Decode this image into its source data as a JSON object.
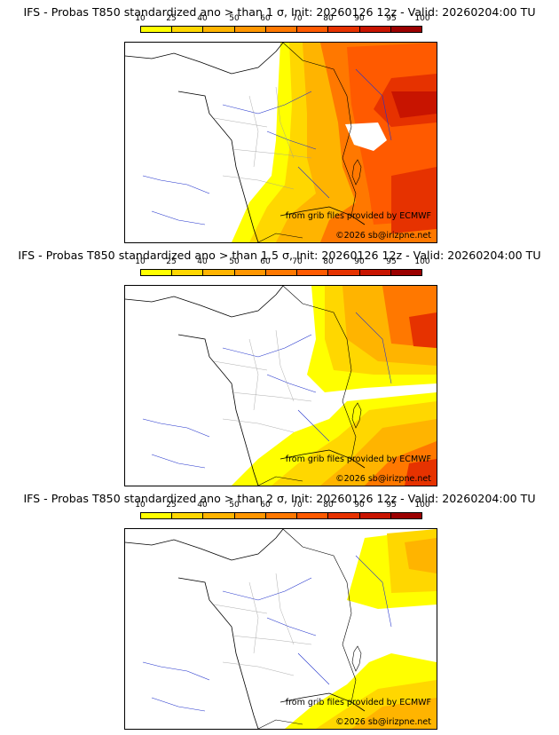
{
  "colorbar": {
    "ticks": [
      "10",
      "25",
      "40",
      "50",
      "60",
      "70",
      "80",
      "90",
      "95",
      "100"
    ],
    "colors": [
      "#ffff00",
      "#ffd700",
      "#ffb400",
      "#ff9600",
      "#ff7800",
      "#ff5a00",
      "#e63200",
      "#c81400",
      "#9b0000",
      "#640000"
    ]
  },
  "panels": [
    {
      "title": "IFS - Probas T850  standardized ano > than 1 σ, Init: 20260126 12z - Valid: 20260204:00 TU",
      "credit_source": "from grib files provided by ECMWF",
      "credit_copyright": "©2026 sb@irizpne.net",
      "probability_level": "high"
    },
    {
      "title": "IFS - Probas T850  standardized ano > than 1.5 σ, Init: 20260126 12z - Valid: 20260204:00 TU",
      "credit_source": "from grib files provided by ECMWF",
      "credit_copyright": "©2026 sb@irizpne.net",
      "probability_level": "medium"
    },
    {
      "title": "IFS - Probas T850  standardized ano > than 2 σ, Init: 20260126 12z - Valid: 20260204:00 TU",
      "credit_source": "from grib files provided by ECMWF",
      "credit_copyright": "©2026 sb@irizpne.net",
      "probability_level": "low"
    }
  ]
}
